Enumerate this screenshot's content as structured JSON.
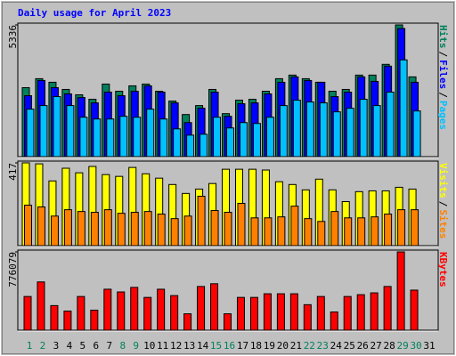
{
  "legend_separator": "/",
  "chart_data": [
    {
      "type": "bar",
      "title": "Daily usage for April 2023",
      "title_color": "#0000ff",
      "ylim": [
        0,
        5336
      ],
      "yticks": [
        5336
      ],
      "series": [
        {
          "name": "Hits",
          "color": "#00805c",
          "values": [
            2795,
            3158,
            3013,
            2723,
            2505,
            2323,
            2940,
            2650,
            2868,
            2940,
            2650,
            2251,
            1706,
            2069,
            2723,
            1742,
            2287,
            2323,
            2650,
            3158,
            3303,
            3158,
            3013,
            2650,
            2723,
            3303,
            3303,
            3739,
            5336,
            3231,
            null
          ]
        },
        {
          "name": "Files",
          "color": "#0000ff",
          "values": [
            2468,
            3086,
            2795,
            2541,
            2396,
            2178,
            2614,
            2468,
            2650,
            2868,
            2614,
            2178,
            1379,
            1960,
            2614,
            1634,
            2142,
            2178,
            2541,
            3013,
            3231,
            3086,
            3013,
            2432,
            2614,
            3231,
            3049,
            3666,
            5191,
            3013,
            null
          ]
        },
        {
          "name": "Pages",
          "color": "#00c0ff",
          "values": [
            1924,
            2069,
            2432,
            2069,
            1597,
            1525,
            1525,
            1634,
            1597,
            1924,
            1525,
            1125,
            871,
            908,
            1597,
            1162,
            1379,
            1343,
            1597,
            2069,
            2287,
            2214,
            2178,
            1815,
            1960,
            2323,
            2069,
            2614,
            3920,
            1851,
            null
          ]
        }
      ]
    },
    {
      "type": "bar",
      "ylim": [
        0,
        417
      ],
      "yticks": [
        417
      ],
      "series": [
        {
          "name": "Visits",
          "color": "#ffff00",
          "values": [
            417,
            412,
            326,
            390,
            367,
            399,
            358,
            349,
            394,
            362,
            340,
            308,
            263,
            285,
            313,
            385,
            385,
            385,
            381,
            322,
            308,
            281,
            335,
            281,
            222,
            272,
            276,
            276,
            294,
            285,
            null
          ]
        },
        {
          "name": "Sites",
          "color": "#ff8000",
          "values": [
            204,
            195,
            149,
            181,
            172,
            168,
            181,
            163,
            168,
            172,
            159,
            136,
            149,
            249,
            177,
            168,
            213,
            140,
            140,
            145,
            199,
            136,
            122,
            172,
            140,
            140,
            145,
            159,
            181,
            181,
            null
          ]
        }
      ]
    },
    {
      "type": "bar",
      "ylim": [
        0,
        776079
      ],
      "yticks": [
        776079
      ],
      "categories": [
        "1",
        "2",
        "3",
        "4",
        "5",
        "6",
        "7",
        "8",
        "9",
        "10",
        "11",
        "12",
        "13",
        "14",
        "15",
        "16",
        "17",
        "18",
        "19",
        "20",
        "21",
        "22",
        "23",
        "24",
        "25",
        "26",
        "27",
        "28",
        "29",
        "30",
        "31"
      ],
      "category_colors": [
        "#00805c",
        "#00805c",
        "#000000",
        "#000000",
        "#000000",
        "#000000",
        "#000000",
        "#00805c",
        "#00805c",
        "#000000",
        "#000000",
        "#000000",
        "#000000",
        "#000000",
        "#00805c",
        "#00805c",
        "#000000",
        "#000000",
        "#000000",
        "#000000",
        "#000000",
        "#00805c",
        "#00805c",
        "#000000",
        "#000000",
        "#000000",
        "#000000",
        "#000000",
        "#00805c",
        "#00805c",
        "#000000"
      ],
      "series": [
        {
          "name": "KBytes",
          "color": "#ff0000",
          "values": [
            333888,
            478272,
            243648,
            189504,
            333888,
            198528,
            406080,
            379008,
            424128,
            324864,
            406080,
            342912,
            162432,
            433152,
            460224,
            162432,
            324864,
            324864,
            360960,
            360960,
            360960,
            252672,
            333888,
            180480,
            333888,
            351936,
            369984,
            433152,
            776079,
            397056,
            null
          ]
        }
      ]
    }
  ]
}
